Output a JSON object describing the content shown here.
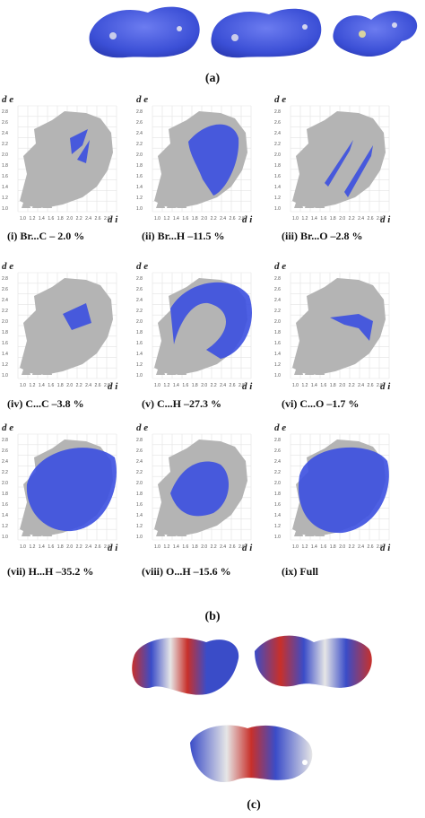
{
  "figure": {
    "panel_a_label": "(a)",
    "panel_b_label": "(b)",
    "panel_c_label": "(c)"
  },
  "fingerprints": {
    "y_axis_label": "d e",
    "x_axis_label": "d i",
    "y_ticks": [
      "2.8",
      "2.6",
      "2.4",
      "2.2",
      "2.0",
      "1.8",
      "1.6",
      "1.4",
      "1.2",
      "1.0"
    ],
    "x_ticks": [
      "1.0",
      "1.2",
      "1.4",
      "1.6",
      "1.8",
      "2.0",
      "2.2",
      "2.4",
      "2.6",
      "2.8"
    ],
    "plots": [
      {
        "caption": "(i) Br...C – 2.0 %"
      },
      {
        "caption": "(ii) Br...H –11.5 %"
      },
      {
        "caption": "(iii) Br...O –2.8 %"
      },
      {
        "caption": "(iv) C...C –3.8 %"
      },
      {
        "caption": "(v) C...H –27.3 %"
      },
      {
        "caption": "(vi) C...O –1.7 %"
      },
      {
        "caption": "(vii) H...H –35.2 %"
      },
      {
        "caption": "(viii) O...H –15.6 %"
      },
      {
        "caption": "(ix) Full"
      }
    ]
  },
  "colors": {
    "dnorm_blue": "#4a5bd8",
    "fingerprint_grey": "#b4b4b4",
    "fingerprint_blue": "#3b4fe0",
    "esp_red": "#c8302a",
    "esp_blue": "#3a4cc8",
    "esp_white": "#e6e6e6"
  }
}
